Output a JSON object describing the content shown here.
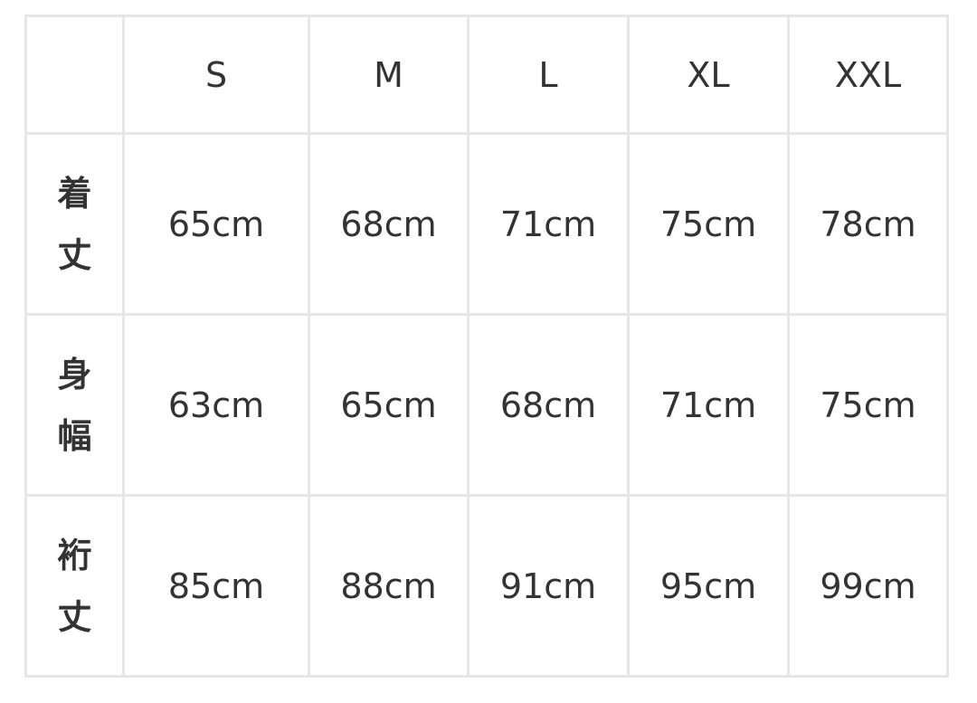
{
  "sizes": [
    "S",
    "M",
    "L",
    "XL",
    "XXL"
  ],
  "rows": [
    {
      "label_chars": [
        "着",
        "丈"
      ],
      "values": [
        "65cm",
        "68cm",
        "71cm",
        "75cm",
        "78cm"
      ]
    },
    {
      "label_chars": [
        "身",
        "幅"
      ],
      "values": [
        "63cm",
        "65cm",
        "68cm",
        "71cm",
        "75cm"
      ]
    },
    {
      "label_chars": [
        "裄",
        "丈"
      ],
      "values": [
        "85cm",
        "88cm",
        "91cm",
        "95cm",
        "99cm"
      ]
    }
  ]
}
